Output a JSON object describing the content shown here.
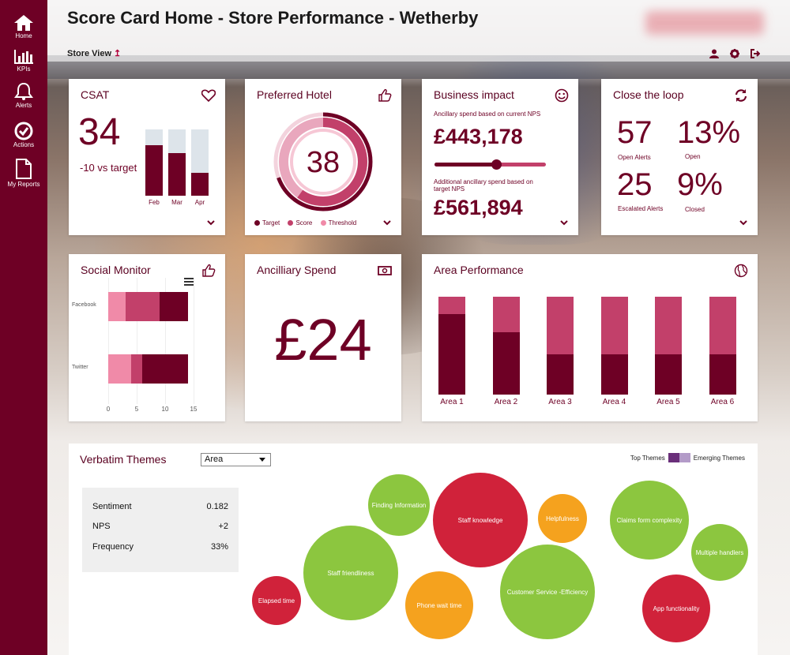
{
  "sidebar": {
    "items": [
      {
        "label": "Home",
        "icon": "home-icon"
      },
      {
        "label": "KPIs",
        "icon": "bar-chart-icon"
      },
      {
        "label": "Alerts",
        "icon": "bell-icon"
      },
      {
        "label": "Actions",
        "icon": "check-circle-icon"
      },
      {
        "label": "My Reports",
        "icon": "document-icon"
      }
    ]
  },
  "header": {
    "title": "Score Card Home - Store Performance - Wetherby",
    "breadcrumb": "Store View",
    "icons": [
      "user-icon",
      "gear-icon",
      "logout-icon"
    ]
  },
  "colors": {
    "primary": "#6e0025",
    "medium": "#c2406a",
    "light": "#f08aa8",
    "pale": "#dde4ea",
    "green": "#8cc63f",
    "red": "#d0223a",
    "orange": "#f5a21e"
  },
  "csat": {
    "title": "CSAT",
    "value": "34",
    "delta": "-10 vs target",
    "chart_data": {
      "type": "bar",
      "categories": [
        "Feb",
        "Mar",
        "Apr"
      ],
      "values": [
        76,
        64,
        35
      ],
      "target": [
        100,
        100,
        100
      ]
    }
  },
  "preferred_hotel": {
    "title": "Preferred Hotel",
    "value": "38",
    "legend": [
      "Target",
      "Score",
      "Threshold"
    ]
  },
  "business_impact": {
    "title": "Business impact",
    "current_label": "Ancillary spend based on current NPS",
    "current_value": "£443,178",
    "slider_level": 0.55,
    "additional_label": "Additional ancillary spend based on target NPS",
    "additional_value": "£561,894"
  },
  "close_loop": {
    "title": "Close the loop",
    "open_alerts_value": "57",
    "open_alerts_label": "Open Alerts",
    "open_pct_value": "13%",
    "open_pct_label": "Open",
    "escalated_value": "25",
    "escalated_label": "Escalated Alerts",
    "closed_pct_value": "9%",
    "closed_pct_label": "Closed"
  },
  "social_monitor": {
    "title": "Social Monitor",
    "chart_data": {
      "type": "bar",
      "orientation": "horizontal",
      "categories": [
        "Facebook",
        "Twitter"
      ],
      "series": [
        {
          "values": [
            3,
            4
          ]
        },
        {
          "values": [
            6,
            2
          ]
        },
        {
          "values": [
            5,
            8
          ]
        }
      ],
      "xticks": [
        "0",
        "5",
        "10",
        "15"
      ],
      "xlim": [
        0,
        15
      ]
    }
  },
  "ancillary_spend": {
    "title": "Ancilliary Spend",
    "value": "£24"
  },
  "area_performance": {
    "title": "Area Performance",
    "chart_data": {
      "type": "bar",
      "categories": [
        "Area 1",
        "Area 2",
        "Area 3",
        "Area 4",
        "Area 5",
        "Area 6"
      ],
      "series": [
        {
          "values": [
            82,
            64,
            41,
            41,
            41,
            41
          ]
        },
        {
          "values": [
            18,
            36,
            59,
            59,
            59,
            59
          ]
        }
      ],
      "ylim": [
        0,
        100
      ]
    }
  },
  "verbatim": {
    "title": "Verbatim Themes",
    "dropdown_value": "Area",
    "legend_top": "Top Themes",
    "legend_emerging": "Emerging Themes",
    "stats": [
      {
        "label": "Sentiment",
        "value": "0.182"
      },
      {
        "label": "NPS",
        "value": "+2"
      },
      {
        "label": "Frequency",
        "value": "33%"
      }
    ],
    "bubbles": [
      {
        "label": "Finding Information",
        "color": "green"
      },
      {
        "label": "Staff knowledge",
        "color": "red"
      },
      {
        "label": "Helpfulness",
        "color": "orange"
      },
      {
        "label": "Claims form complexity",
        "color": "green"
      },
      {
        "label": "Multiple handlers",
        "color": "green"
      },
      {
        "label": "Staff friendliness",
        "color": "green"
      },
      {
        "label": "Customer Service -Efficiency",
        "color": "green"
      },
      {
        "label": "Elapsed time",
        "color": "red"
      },
      {
        "label": "Phone wait time",
        "color": "orange"
      },
      {
        "label": "App functionality",
        "color": "red"
      }
    ]
  }
}
